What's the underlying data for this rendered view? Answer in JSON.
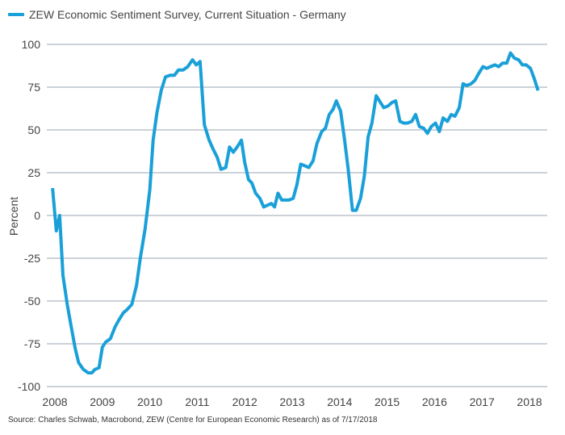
{
  "chart_data": {
    "type": "line",
    "title": "",
    "ylabel": "Percent",
    "xlabel": "",
    "ylim": [
      -100,
      100
    ],
    "xlim": [
      2008.0,
      2018.35
    ],
    "grid": true,
    "legend_position": "top-left",
    "yticks": [
      100,
      75,
      50,
      25,
      0,
      -25,
      -50,
      -75,
      -100
    ],
    "ytick_labels": [
      "100",
      "75",
      "50",
      "25",
      "0",
      "-25",
      "-50",
      "-75",
      "-100"
    ],
    "xticks": [
      2008,
      2009,
      2010,
      2011,
      2012,
      2013,
      2014,
      2015,
      2016,
      2017,
      2018
    ],
    "xtick_labels": [
      "2008",
      "2009",
      "2010",
      "2011",
      "2012",
      "2013",
      "2014",
      "2015",
      "2016",
      "2017",
      "2018"
    ],
    "series": [
      {
        "name": "ZEW Economic Sentiment Survey, Current Situation - Germany",
        "color": "#1aa0d8",
        "points": [
          [
            2007.95,
            16
          ],
          [
            2008.03,
            -9
          ],
          [
            2008.1,
            0
          ],
          [
            2008.17,
            -35
          ],
          [
            2008.26,
            -52
          ],
          [
            2008.35,
            -66
          ],
          [
            2008.43,
            -78
          ],
          [
            2008.5,
            -86
          ],
          [
            2008.6,
            -90
          ],
          [
            2008.7,
            -92
          ],
          [
            2008.78,
            -92
          ],
          [
            2008.84,
            -90
          ],
          [
            2008.93,
            -89
          ],
          [
            2009.0,
            -77
          ],
          [
            2009.07,
            -74
          ],
          [
            2009.17,
            -72
          ],
          [
            2009.27,
            -65
          ],
          [
            2009.35,
            -61
          ],
          [
            2009.44,
            -57
          ],
          [
            2009.52,
            -55
          ],
          [
            2009.62,
            -52
          ],
          [
            2009.72,
            -41
          ],
          [
            2009.8,
            -25
          ],
          [
            2009.9,
            -8
          ],
          [
            2010.0,
            15
          ],
          [
            2010.07,
            44
          ],
          [
            2010.15,
            60
          ],
          [
            2010.24,
            73
          ],
          [
            2010.33,
            81
          ],
          [
            2010.43,
            82
          ],
          [
            2010.52,
            82
          ],
          [
            2010.6,
            85
          ],
          [
            2010.7,
            85
          ],
          [
            2010.8,
            87
          ],
          [
            2010.9,
            91
          ],
          [
            2010.98,
            88
          ],
          [
            2011.06,
            90
          ],
          [
            2011.15,
            53
          ],
          [
            2011.25,
            44
          ],
          [
            2011.33,
            39
          ],
          [
            2011.42,
            34
          ],
          [
            2011.5,
            27
          ],
          [
            2011.6,
            28
          ],
          [
            2011.68,
            40
          ],
          [
            2011.76,
            37
          ],
          [
            2011.84,
            40
          ],
          [
            2011.93,
            44
          ],
          [
            2012.0,
            31
          ],
          [
            2012.08,
            21
          ],
          [
            2012.15,
            19
          ],
          [
            2012.23,
            13
          ],
          [
            2012.32,
            10
          ],
          [
            2012.4,
            5
          ],
          [
            2012.48,
            6
          ],
          [
            2012.56,
            7
          ],
          [
            2012.63,
            5
          ],
          [
            2012.7,
            13
          ],
          [
            2012.78,
            9
          ],
          [
            2012.86,
            9
          ],
          [
            2012.93,
            9
          ],
          [
            2013.02,
            10
          ],
          [
            2013.1,
            18
          ],
          [
            2013.18,
            30
          ],
          [
            2013.27,
            29
          ],
          [
            2013.35,
            28
          ],
          [
            2013.44,
            32
          ],
          [
            2013.52,
            42
          ],
          [
            2013.62,
            49
          ],
          [
            2013.7,
            51
          ],
          [
            2013.78,
            59
          ],
          [
            2013.86,
            62
          ],
          [
            2013.93,
            67
          ],
          [
            2014.02,
            61
          ],
          [
            2014.1,
            45
          ],
          [
            2014.18,
            27
          ],
          [
            2014.27,
            3
          ],
          [
            2014.35,
            3
          ],
          [
            2014.44,
            10
          ],
          [
            2014.52,
            23
          ],
          [
            2014.6,
            46
          ],
          [
            2014.68,
            54
          ],
          [
            2014.77,
            70
          ],
          [
            2014.86,
            66
          ],
          [
            2014.93,
            63
          ],
          [
            2015.02,
            64
          ],
          [
            2015.1,
            66
          ],
          [
            2015.18,
            67
          ],
          [
            2015.27,
            55
          ],
          [
            2015.35,
            54
          ],
          [
            2015.43,
            54
          ],
          [
            2015.52,
            55
          ],
          [
            2015.6,
            59
          ],
          [
            2015.68,
            52
          ],
          [
            2015.77,
            51
          ],
          [
            2015.85,
            48
          ],
          [
            2015.93,
            52
          ],
          [
            2016.02,
            54
          ],
          [
            2016.1,
            49
          ],
          [
            2016.18,
            57
          ],
          [
            2016.27,
            55
          ],
          [
            2016.35,
            59
          ],
          [
            2016.43,
            58
          ],
          [
            2016.52,
            63
          ],
          [
            2016.6,
            77
          ],
          [
            2016.68,
            76
          ],
          [
            2016.77,
            77
          ],
          [
            2016.85,
            79
          ],
          [
            2016.93,
            83
          ],
          [
            2017.02,
            87
          ],
          [
            2017.1,
            86
          ],
          [
            2017.18,
            87
          ],
          [
            2017.27,
            88
          ],
          [
            2017.35,
            87
          ],
          [
            2017.43,
            89
          ],
          [
            2017.52,
            89
          ],
          [
            2017.6,
            95
          ],
          [
            2017.68,
            92
          ],
          [
            2017.77,
            91
          ],
          [
            2017.85,
            88
          ],
          [
            2017.93,
            88
          ],
          [
            2018.02,
            86
          ],
          [
            2018.1,
            80
          ],
          [
            2018.18,
            73
          ]
        ]
      }
    ]
  },
  "legend": {
    "label": "ZEW Economic Sentiment Survey, Current Situation - Germany",
    "color": "#1aa0d8"
  },
  "source": "Source: Charles Schwab, Macrobond, ZEW (Centre for European Economic Research) as of 7/17/2018"
}
